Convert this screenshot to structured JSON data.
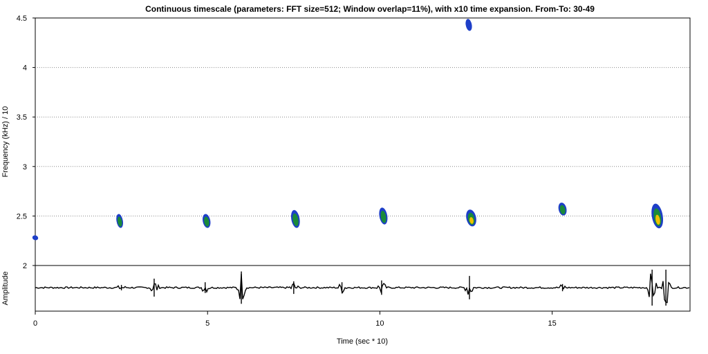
{
  "chart_data": {
    "type": "heatmap",
    "title": "Continuous timescale (parameters: FFT size=512; Window overlap=11%), with x10 time expansion. From-To: 30-49",
    "xlabel": "Time (sec * 10)",
    "ylabel": "Frequency (kHz) / 10",
    "amplitude_label": "Amplitude",
    "xlim": [
      0,
      19
    ],
    "ylim": [
      2,
      4.5
    ],
    "x_ticks": [
      0,
      5,
      10,
      15
    ],
    "y_ticks": [
      2,
      2.5,
      3,
      3.5,
      4,
      4.5
    ],
    "y_tick_labels": [
      "2",
      "2.5",
      "3",
      "3.5",
      "4",
      "4.5"
    ],
    "grid": "horizontal dotted",
    "colors": {
      "low": "#1e3fc8",
      "mid": "#1a8a3a",
      "high": "#f0c000",
      "waveform": "#000000"
    },
    "calls": [
      {
        "time": 0.0,
        "freq": 2.28,
        "height": 0.05,
        "intensity": 0.3
      },
      {
        "time": 2.45,
        "freq": 2.45,
        "height": 0.14,
        "intensity": 0.4
      },
      {
        "time": 4.97,
        "freq": 2.45,
        "height": 0.14,
        "intensity": 0.55
      },
      {
        "time": 7.55,
        "freq": 2.47,
        "height": 0.18,
        "intensity": 0.65
      },
      {
        "time": 10.1,
        "freq": 2.5,
        "height": 0.17,
        "intensity": 0.6
      },
      {
        "time": 12.65,
        "freq": 2.48,
        "height": 0.17,
        "intensity": 0.85
      },
      {
        "time": 12.58,
        "freq": 4.43,
        "height": 0.12,
        "intensity": 0.35
      },
      {
        "time": 15.3,
        "freq": 2.57,
        "height": 0.13,
        "intensity": 0.6
      },
      {
        "time": 18.05,
        "freq": 2.5,
        "height": 0.25,
        "intensity": 1.0
      }
    ],
    "amplitude_bursts": [
      {
        "time": 2.5,
        "amp": 0.15
      },
      {
        "time": 3.45,
        "amp": 0.5
      },
      {
        "time": 4.93,
        "amp": 0.3
      },
      {
        "time": 5.98,
        "amp": 0.9
      },
      {
        "time": 7.5,
        "amp": 0.35
      },
      {
        "time": 8.9,
        "amp": 0.3
      },
      {
        "time": 10.05,
        "amp": 0.4
      },
      {
        "time": 12.6,
        "amp": 0.65
      },
      {
        "time": 15.3,
        "amp": 0.2
      },
      {
        "time": 17.9,
        "amp": 1.0
      },
      {
        "time": 18.3,
        "amp": 1.0
      }
    ]
  }
}
